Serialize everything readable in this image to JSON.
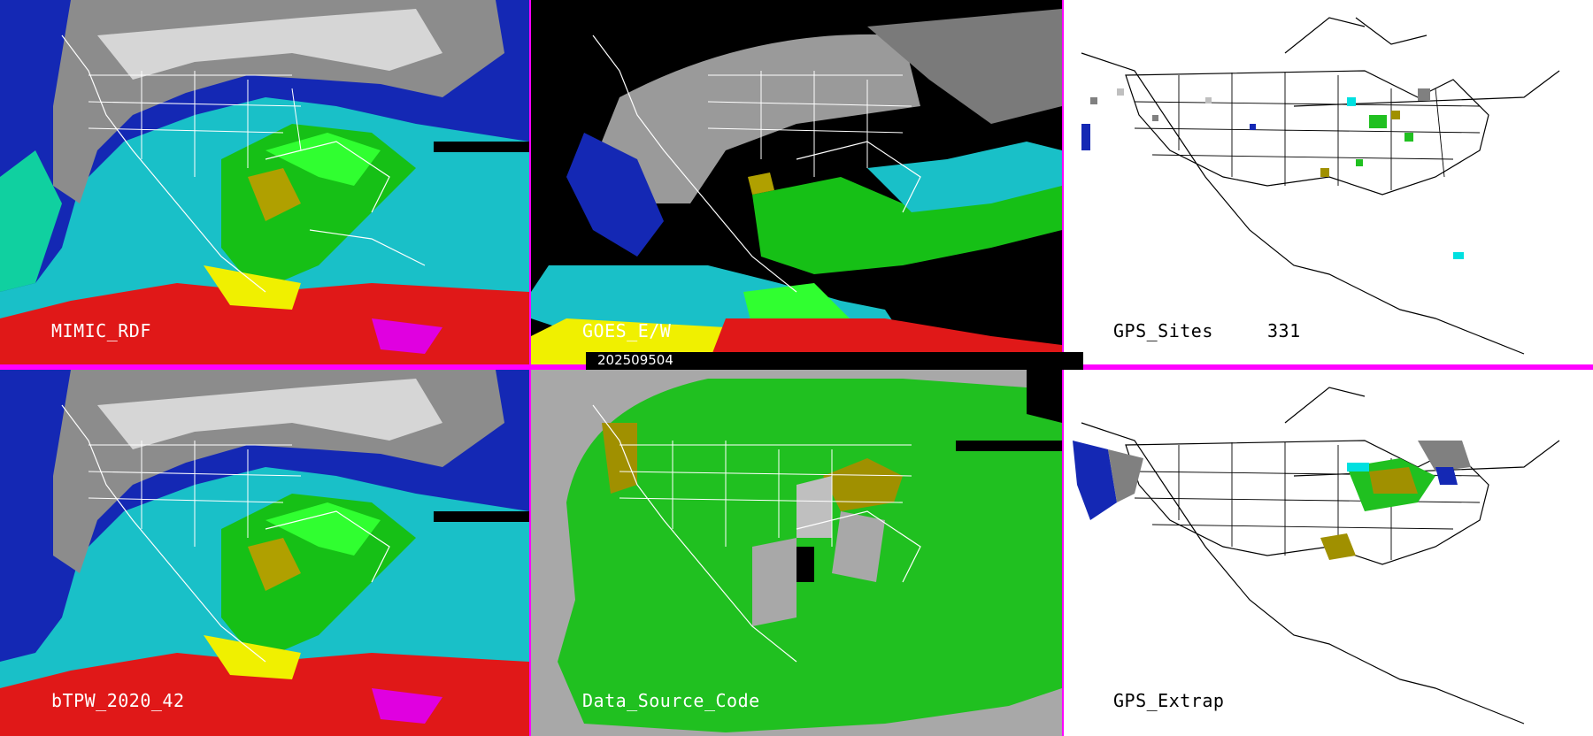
{
  "panels": {
    "p1": {
      "label": "MIMIC_RDF"
    },
    "p2": {
      "label": "GOES_E/W"
    },
    "p3": {
      "label": "GPS_Sites",
      "count": "331"
    },
    "p4": {
      "label": "bTPW_2020_42"
    },
    "p5": {
      "label": "Data_Source_Code"
    },
    "p6": {
      "label": "GPS_Extrap"
    }
  },
  "timestamp": "202509504",
  "colors": {
    "divider": "#ff00ff",
    "tpw_scale": [
      "#ffffff",
      "#bfbfbf",
      "#808080",
      "#1010a0",
      "#2060ff",
      "#00e0e0",
      "#20c020",
      "#00ff00",
      "#a09000",
      "#ffff00",
      "#ff0000",
      "#e000e0"
    ]
  }
}
